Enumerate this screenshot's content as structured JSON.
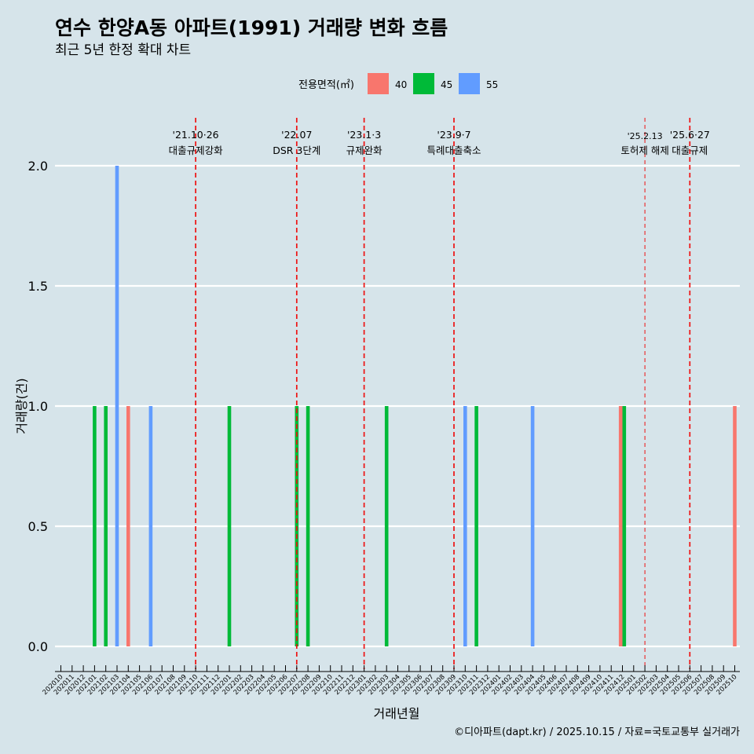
{
  "chart_data": {
    "type": "bar",
    "title": "연수 한양A동 아파트(1991) 거래량 변화 흐름",
    "subtitle": "최근 5년 한정 확대 차트",
    "xlabel": "거래년월",
    "ylabel": "거래량(건)",
    "ylim": [
      0,
      2
    ],
    "yticks": [
      "0.0",
      "0.5",
      "1.0",
      "1.5",
      "2.0"
    ],
    "legend": {
      "title": "전용면적(㎡)",
      "position": "top",
      "items": [
        {
          "name": "40",
          "color": "#f8766d"
        },
        {
          "name": "45",
          "color": "#00ba38"
        },
        {
          "name": "55",
          "color": "#619cff"
        }
      ]
    },
    "categories": [
      "202010",
      "202011",
      "202012",
      "202101",
      "202102",
      "202103",
      "202104",
      "202105",
      "202106",
      "202107",
      "202108",
      "202109",
      "202110",
      "202111",
      "202112",
      "202201",
      "202202",
      "202203",
      "202204",
      "202205",
      "202206",
      "202207",
      "202208",
      "202209",
      "202210",
      "202211",
      "202212",
      "202301",
      "202302",
      "202303",
      "202304",
      "202305",
      "202306",
      "202307",
      "202308",
      "202309",
      "202310",
      "202311",
      "202312",
      "202401",
      "202402",
      "202403",
      "202404",
      "202405",
      "202406",
      "202407",
      "202408",
      "202409",
      "202410",
      "202411",
      "202412",
      "202501",
      "202502",
      "202503",
      "202504",
      "202505",
      "202506",
      "202507",
      "202508",
      "202509",
      "202510"
    ],
    "series": [
      {
        "name": "40",
        "color": "#f8766d",
        "points": [
          {
            "x": "202104",
            "y": 1
          },
          {
            "x": "202412",
            "y": 1
          },
          {
            "x": "202510",
            "y": 1
          }
        ]
      },
      {
        "name": "45",
        "color": "#00ba38",
        "points": [
          {
            "x": "202101",
            "y": 1
          },
          {
            "x": "202102",
            "y": 1
          },
          {
            "x": "202201",
            "y": 1
          },
          {
            "x": "202207",
            "y": 1
          },
          {
            "x": "202208",
            "y": 1
          },
          {
            "x": "202303",
            "y": 1
          },
          {
            "x": "202311",
            "y": 1
          },
          {
            "x": "202412",
            "y": 1
          }
        ]
      },
      {
        "name": "55",
        "color": "#619cff",
        "points": [
          {
            "x": "202103",
            "y": 2
          },
          {
            "x": "202106",
            "y": 1
          },
          {
            "x": "202310",
            "y": 1
          },
          {
            "x": "202404",
            "y": 1
          }
        ]
      }
    ],
    "events": [
      {
        "x": "202110",
        "date": "'21.10·26",
        "label": "대출규제강화",
        "style": "bold"
      },
      {
        "x": "202207",
        "date": "'22.07",
        "label": "DSR 3단계",
        "style": "bold"
      },
      {
        "x": "202301",
        "date": "'23.1·3",
        "label": "규제완화",
        "style": "bold"
      },
      {
        "x": "202309",
        "date": "'23.9·7",
        "label": "특례대출축소",
        "style": "bold"
      },
      {
        "x": "202502",
        "date": "'25.2.13",
        "label": "토허제 해제",
        "style": "thin"
      },
      {
        "x": "202506",
        "date": "'25.6·27",
        "label": "대출규제",
        "style": "bold"
      }
    ],
    "caption": "©디아파트(dapt.kr) / 2025.10.15 / 자료=국토교통부 실거래가"
  }
}
